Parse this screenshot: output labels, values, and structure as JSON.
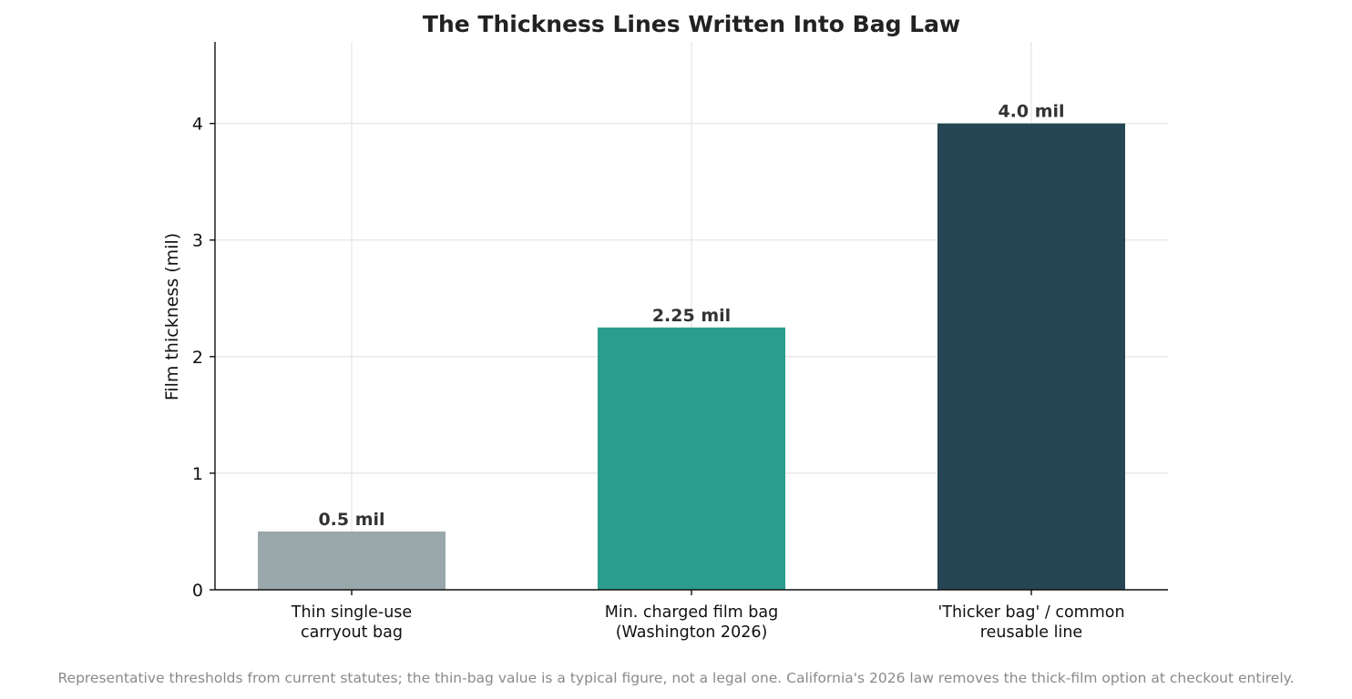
{
  "chart_data": {
    "type": "bar",
    "title": "The Thickness Lines Written Into Bag Law",
    "xlabel": "",
    "ylabel": "Film thickness (mil)",
    "categories": [
      [
        "Thin single-use",
        "carryout bag"
      ],
      [
        "Min. charged film bag",
        "(Washington 2026)"
      ],
      [
        "'Thicker bag' / common",
        "reusable line"
      ]
    ],
    "values": [
      0.5,
      2.25,
      4.0
    ],
    "value_labels": [
      "0.5 mil",
      "2.25 mil",
      "4.0 mil"
    ],
    "colors": [
      "#9aa7ab",
      "#2a9d8e",
      "#264653"
    ],
    "ylim": [
      0,
      4.7
    ],
    "yticks": [
      0,
      1,
      2,
      3,
      4
    ],
    "grid": true,
    "legend": "none",
    "footnote": "Representative thresholds from current statutes; the thin-bag value is a typical figure, not a legal one. California's 2026 law removes the thick-film option at checkout entirely."
  }
}
